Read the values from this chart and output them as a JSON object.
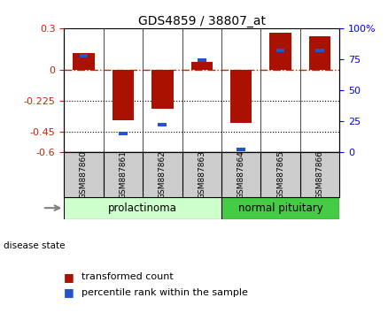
{
  "title": "GDS4859 / 38807_at",
  "samples": [
    "GSM887860",
    "GSM887861",
    "GSM887862",
    "GSM887863",
    "GSM887864",
    "GSM887865",
    "GSM887866"
  ],
  "transformed_count": [
    0.12,
    -0.37,
    -0.285,
    0.055,
    -0.39,
    0.27,
    0.24
  ],
  "percentile_values": [
    78,
    15,
    22,
    74,
    2,
    82,
    82
  ],
  "ylim_left": [
    -0.6,
    0.3
  ],
  "yticks_left": [
    -0.6,
    -0.45,
    -0.225,
    0.0,
    0.3
  ],
  "ytick_labels_left": [
    "-0.6",
    "-0.45",
    "-0.225",
    "0",
    "0.3"
  ],
  "ylim_right": [
    0,
    100
  ],
  "yticks_right": [
    0,
    25,
    50,
    75,
    100
  ],
  "ytick_labels_right": [
    "0",
    "25",
    "50",
    "75",
    "100%"
  ],
  "hline_y": 0.0,
  "dotted_lines": [
    -0.225,
    -0.45
  ],
  "group1_label": "prolactinoma",
  "group2_label": "normal pituitary",
  "group1_indices": [
    0,
    1,
    2,
    3
  ],
  "group2_indices": [
    4,
    5,
    6
  ],
  "disease_state_label": "disease state",
  "legend_red": "transformed count",
  "legend_blue": "percentile rank within the sample",
  "bar_color_red": "#aa1100",
  "bar_color_blue": "#2255cc",
  "group1_bg": "#ccffcc",
  "group2_bg": "#44cc44",
  "sample_box_bg": "#cccccc",
  "title_fontsize": 10,
  "axis_fontsize": 8,
  "legend_fontsize": 8
}
